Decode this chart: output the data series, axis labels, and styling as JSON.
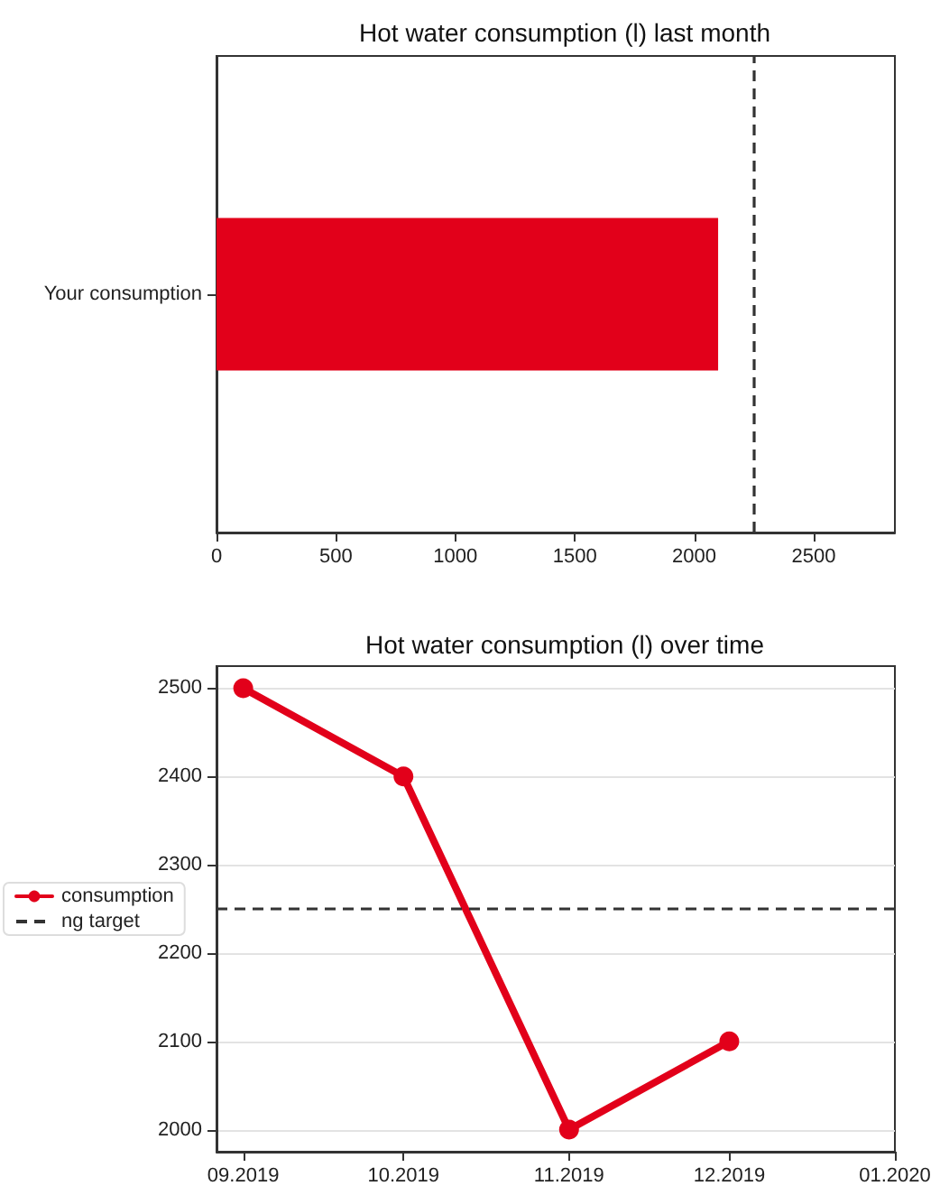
{
  "chart_data": [
    {
      "type": "bar",
      "title": "Hot water consumption (l) last month",
      "orientation": "horizontal",
      "categories": [
        "Your consumption"
      ],
      "values": [
        2100
      ],
      "color": "#e2001a",
      "xlim": [
        0,
        2840
      ],
      "xticks": [
        0,
        500,
        1000,
        1500,
        2000,
        2500
      ],
      "grid": false,
      "legend": false,
      "ref_lines": [
        {
          "axis": "x",
          "value": 2250,
          "color": "#333333",
          "line_style": "dashed"
        }
      ]
    },
    {
      "type": "line",
      "title": "Hot water consumption (l) over time",
      "x": [
        "2019-09",
        "2019-10",
        "2019-11",
        "2019-12"
      ],
      "series": [
        {
          "name": "consumption",
          "color": "#e2001a",
          "values": [
            2500,
            2400,
            2000,
            2100
          ]
        }
      ],
      "xlim": [
        "2019-08-27",
        "2020-01-01"
      ],
      "xticks": [
        {
          "value": "2019-09",
          "label": "09.2019"
        },
        {
          "value": "2019-10",
          "label": "10.2019"
        },
        {
          "value": "2019-11",
          "label": "11.2019"
        },
        {
          "value": "2019-12",
          "label": "12.2019"
        },
        {
          "value": "2020-01",
          "label": "01.2020"
        }
      ],
      "ylim": [
        1975,
        2525
      ],
      "yticks": [
        2000,
        2100,
        2200,
        2300,
        2400,
        2500
      ],
      "grid": "y",
      "legend": "left",
      "marker": "circle",
      "line_style": "solid",
      "ref_lines": [
        {
          "axis": "y",
          "value": 2250,
          "label": "ng target",
          "color": "#333333",
          "line_style": "dashed"
        }
      ]
    }
  ]
}
